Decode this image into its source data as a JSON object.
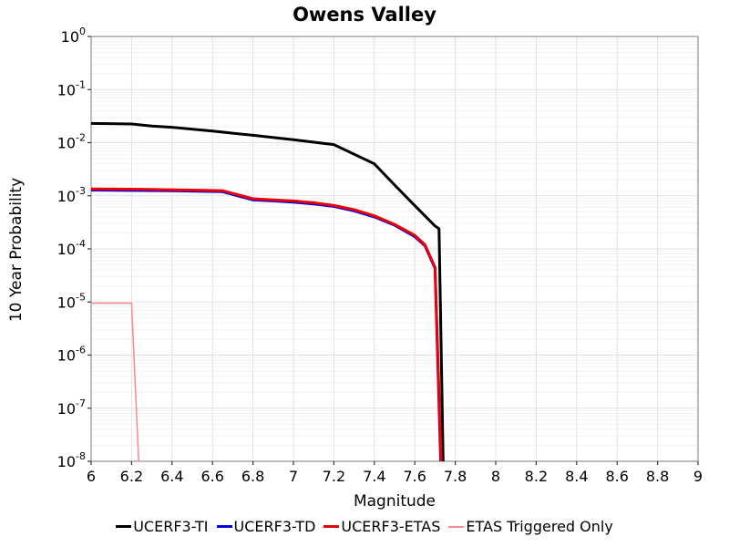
{
  "title": "Owens Valley",
  "axes": {
    "x": {
      "label": "Magnitude",
      "min": 6,
      "max": 9,
      "tick_values": [
        6,
        6.2,
        6.4,
        6.6,
        6.8,
        7,
        7.2,
        7.4,
        7.6,
        7.8,
        8,
        8.2,
        8.4,
        8.6,
        8.8,
        9
      ],
      "tick_labels": [
        "6",
        "6.2",
        "6.4",
        "6.6",
        "6.8",
        "7",
        "7.2",
        "7.4",
        "7.6",
        "7.8",
        "8",
        "8.2",
        "8.4",
        "8.6",
        "8.8",
        "9"
      ]
    },
    "y": {
      "label": "10 Year Probability",
      "scale": "log",
      "exponents": [
        0,
        -1,
        -2,
        -3,
        -4,
        -5,
        -6,
        -7,
        -8
      ],
      "tick_base": "10"
    }
  },
  "legend": {
    "items": [
      {
        "label": "UCERF3-TI",
        "color": "#000000",
        "thickness": 3
      },
      {
        "label": "UCERF3-TD",
        "color": "#0000ee",
        "thickness": 3
      },
      {
        "label": "UCERF3-ETAS",
        "color": "#ee0000",
        "thickness": 3
      },
      {
        "label": "ETAS Triggered Only",
        "color": "#ff8888",
        "thickness": 2
      }
    ]
  },
  "colors": {
    "background": "#ffffff",
    "plot_border": "#909090",
    "grid_major": "#e2e2e2",
    "grid_minor": "#f2f2f2",
    "tick_mark": "#333333",
    "text": "#000000"
  },
  "chart_data": {
    "type": "line",
    "title": "Owens Valley",
    "xlabel": "Magnitude",
    "ylabel": "10 Year Probability",
    "x_range": [
      6,
      9
    ],
    "y_range": [
      1e-08,
      1
    ],
    "y_scale": "log",
    "grid": true,
    "legend_position": "bottom",
    "series": [
      {
        "name": "UCERF3-TI",
        "color": "#000000",
        "width": 3,
        "points": [
          [
            6.0,
            0.023
          ],
          [
            6.2,
            0.0225
          ],
          [
            6.3,
            0.0205
          ],
          [
            6.4,
            0.0195
          ],
          [
            6.6,
            0.0165
          ],
          [
            6.8,
            0.0138
          ],
          [
            7.0,
            0.0114
          ],
          [
            7.2,
            0.0092
          ],
          [
            7.4,
            0.004
          ],
          [
            7.5,
            0.0016
          ],
          [
            7.6,
            0.00065
          ],
          [
            7.7,
            0.00027
          ],
          [
            7.72,
            0.00024
          ],
          [
            7.74,
            1e-08
          ]
        ]
      },
      {
        "name": "UCERF3-TD",
        "color": "#0000ee",
        "width": 3,
        "points": [
          [
            6.0,
            0.00128
          ],
          [
            6.2,
            0.00126
          ],
          [
            6.4,
            0.00124
          ],
          [
            6.65,
            0.00119
          ],
          [
            6.8,
            0.00084
          ],
          [
            6.9,
            0.0008
          ],
          [
            7.0,
            0.00076
          ],
          [
            7.1,
            0.0007
          ],
          [
            7.2,
            0.00063
          ],
          [
            7.3,
            0.00052
          ],
          [
            7.4,
            0.0004
          ],
          [
            7.5,
            0.00028
          ],
          [
            7.6,
            0.00017
          ],
          [
            7.65,
            0.000115
          ],
          [
            7.7,
            4.3e-05
          ],
          [
            7.728,
            1e-08
          ]
        ]
      },
      {
        "name": "UCERF3-ETAS",
        "color": "#ee0000",
        "width": 3,
        "points": [
          [
            6.0,
            0.00135
          ],
          [
            6.2,
            0.00133
          ],
          [
            6.4,
            0.0013
          ],
          [
            6.65,
            0.00125
          ],
          [
            6.8,
            0.00088
          ],
          [
            6.9,
            0.00084
          ],
          [
            7.0,
            0.0008
          ],
          [
            7.1,
            0.00074
          ],
          [
            7.2,
            0.00066
          ],
          [
            7.3,
            0.00055
          ],
          [
            7.4,
            0.00042
          ],
          [
            7.5,
            0.00029
          ],
          [
            7.6,
            0.00018
          ],
          [
            7.65,
            0.00012
          ],
          [
            7.7,
            4.5e-05
          ],
          [
            7.73,
            1e-08
          ]
        ]
      },
      {
        "name": "ETAS Triggered Only",
        "color": "#ff8888",
        "width": 1.5,
        "points": [
          [
            6.0,
            9.5e-06
          ],
          [
            6.2,
            9.5e-06
          ],
          [
            6.235,
            1e-08
          ]
        ]
      }
    ]
  }
}
